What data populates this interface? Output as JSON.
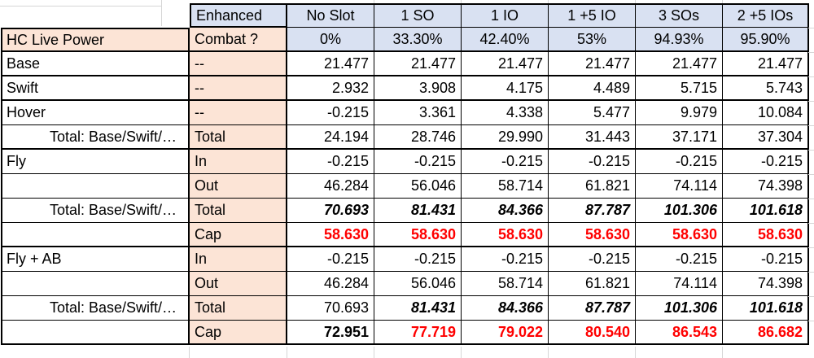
{
  "table": {
    "corner_blank": "",
    "enhanced_label": "Enhanced",
    "power_label": "HC Live Power",
    "combat_label": "Combat ?",
    "slot_headers": [
      "No Slot",
      "1 SO",
      "1 IO",
      "1 +5 IO",
      "3 SOs",
      "2 +5 IOs"
    ],
    "combat_percents": [
      "0%",
      "33.30%",
      "42.40%",
      "53%",
      "94.93%",
      "95.90%"
    ],
    "rows": [
      {
        "label": "Base",
        "label_style": "plain",
        "sub": "--",
        "values": [
          "21.477",
          "21.477",
          "21.477",
          "21.477",
          "21.477",
          "21.477"
        ],
        "formats": [
          "plain",
          "plain",
          "plain",
          "plain",
          "plain",
          "plain"
        ]
      },
      {
        "label": "Swift",
        "label_style": "plain",
        "sub": "--",
        "values": [
          "2.932",
          "3.908",
          "4.175",
          "4.489",
          "5.715",
          "5.743"
        ],
        "formats": [
          "plain",
          "plain",
          "plain",
          "plain",
          "plain",
          "plain"
        ]
      },
      {
        "label": "Hover",
        "label_style": "plain",
        "sub": "--",
        "values": [
          "-0.215",
          "3.361",
          "4.338",
          "5.477",
          "9.979",
          "10.084"
        ],
        "formats": [
          "plain",
          "plain",
          "plain",
          "plain",
          "plain",
          "plain"
        ]
      },
      {
        "label": "Total: Base/Swift/…",
        "label_style": "total",
        "sub": "Total",
        "values": [
          "24.194",
          "28.746",
          "29.990",
          "31.443",
          "37.171",
          "37.304"
        ],
        "formats": [
          "plain",
          "plain",
          "plain",
          "plain",
          "plain",
          "plain"
        ]
      },
      {
        "label": "Fly",
        "label_style": "plain",
        "sub": "In",
        "values": [
          "-0.215",
          "-0.215",
          "-0.215",
          "-0.215",
          "-0.215",
          "-0.215"
        ],
        "formats": [
          "plain",
          "plain",
          "plain",
          "plain",
          "plain",
          "plain"
        ]
      },
      {
        "label": "",
        "label_style": "plain",
        "sub": "Out",
        "values": [
          "46.284",
          "56.046",
          "58.714",
          "61.821",
          "74.114",
          "74.398"
        ],
        "formats": [
          "plain",
          "plain",
          "plain",
          "plain",
          "plain",
          "plain"
        ]
      },
      {
        "label": "Total: Base/Swift/…",
        "label_style": "total",
        "sub": "Total",
        "values": [
          "70.693",
          "81.431",
          "84.366",
          "87.787",
          "101.306",
          "101.618"
        ],
        "formats": [
          "bold-italic",
          "bold-italic",
          "bold-italic",
          "bold-italic",
          "bold-italic",
          "bold-italic"
        ]
      },
      {
        "label": "",
        "label_style": "plain",
        "sub": "Cap",
        "values": [
          "58.630",
          "58.630",
          "58.630",
          "58.630",
          "58.630",
          "58.630"
        ],
        "formats": [
          "red-bold",
          "red-bold",
          "red-bold",
          "red-bold",
          "red-bold",
          "red-bold"
        ]
      },
      {
        "label": "Fly + AB",
        "label_style": "plain",
        "sub": "In",
        "values": [
          "-0.215",
          "-0.215",
          "-0.215",
          "-0.215",
          "-0.215",
          "-0.215"
        ],
        "formats": [
          "plain",
          "plain",
          "plain",
          "plain",
          "plain",
          "plain"
        ]
      },
      {
        "label": "",
        "label_style": "plain",
        "sub": "Out",
        "values": [
          "46.284",
          "56.046",
          "58.714",
          "61.821",
          "74.114",
          "74.398"
        ],
        "formats": [
          "plain",
          "plain",
          "plain",
          "plain",
          "plain",
          "plain"
        ]
      },
      {
        "label": "Total: Base/Swift/…",
        "label_style": "total",
        "sub": "Total",
        "values": [
          "70.693",
          "81.431",
          "84.366",
          "87.787",
          "101.306",
          "101.618"
        ],
        "formats": [
          "plain",
          "bold-italic",
          "bold-italic",
          "bold-italic",
          "bold-italic",
          "bold-italic"
        ]
      },
      {
        "label": "",
        "label_style": "plain",
        "sub": "Cap",
        "values": [
          "72.951",
          "77.719",
          "79.022",
          "80.540",
          "86.543",
          "86.682"
        ],
        "formats": [
          "bold",
          "red-bold",
          "red-bold",
          "red-bold",
          "red-bold",
          "red-bold"
        ]
      }
    ],
    "colors": {
      "header_blue": "#D9E1F2",
      "label_peach": "#FCE4D6",
      "cap_red": "#FF0000",
      "border_black": "#000000"
    }
  }
}
